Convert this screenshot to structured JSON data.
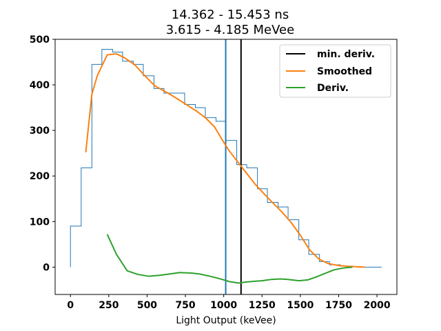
{
  "chart_data": {
    "type": "line",
    "title": "14.362 - 15.453 ns",
    "subtitle": "3.615 - 4.185 MeVee",
    "xlabel": "Light Output (keVee)",
    "ylabel": "",
    "xlim": [
      -100,
      2130
    ],
    "ylim": [
      -60,
      500
    ],
    "xticks": [
      0,
      250,
      500,
      750,
      1000,
      1250,
      1500,
      1750,
      2000
    ],
    "yticks": [
      0,
      100,
      200,
      300,
      400,
      500
    ],
    "grid": false,
    "legend_position": "top-right",
    "histogram": {
      "name": "",
      "color": "#1f77b4",
      "edges": [
        0,
        70,
        140,
        205,
        275,
        340,
        410,
        475,
        545,
        610,
        680,
        745,
        815,
        880,
        950,
        1015,
        1085,
        1150,
        1220,
        1285,
        1355,
        1420,
        1490,
        1555,
        1625,
        1690,
        1760,
        1825,
        1895,
        1960,
        2030
      ],
      "counts": [
        90,
        218,
        445,
        478,
        472,
        452,
        445,
        420,
        392,
        382,
        382,
        357,
        350,
        328,
        320,
        278,
        225,
        218,
        172,
        142,
        132,
        104,
        60,
        28,
        12,
        5,
        2,
        1,
        0,
        0
      ]
    },
    "vertical_lines": [
      {
        "name": "",
        "x": 1013,
        "color": "#1f77b4"
      },
      {
        "name": "min. deriv.",
        "x": 1113,
        "color": "#000000"
      }
    ],
    "series": [
      {
        "name": "Smoothed",
        "color": "#ff7f0e",
        "x": [
          100,
          140,
          175,
          240,
          300,
          350,
          420,
          480,
          550,
          620,
          690,
          760,
          820,
          880,
          940,
          980,
          1030,
          1080,
          1140,
          1200,
          1260,
          1320,
          1380,
          1440,
          1500,
          1560,
          1620,
          1680,
          1740,
          1800,
          1860,
          1920
        ],
        "y": [
          252,
          380,
          420,
          466,
          468,
          460,
          444,
          422,
          398,
          385,
          371,
          356,
          343,
          328,
          308,
          285,
          258,
          236,
          210,
          184,
          162,
          141,
          121,
          98,
          70,
          38,
          18,
          8,
          4,
          2,
          1,
          0
        ]
      },
      {
        "name": "Deriv.",
        "color": "#2ca02c",
        "x": [
          240,
          300,
          370,
          440,
          510,
          580,
          650,
          710,
          790,
          840,
          910,
          980,
          1040,
          1100,
          1140,
          1200,
          1250,
          1310,
          1370,
          1420,
          1490,
          1550,
          1600,
          1660,
          1720,
          1780,
          1840
        ],
        "y": [
          72,
          28,
          -8,
          -16,
          -20,
          -18,
          -15,
          -12,
          -13,
          -15,
          -20,
          -26,
          -32,
          -35,
          -33,
          -31,
          -30,
          -27,
          -26,
          -27,
          -30,
          -28,
          -22,
          -14,
          -6,
          -2,
          0
        ]
      }
    ],
    "legend": [
      "min. deriv.",
      "Smoothed",
      "Deriv."
    ]
  }
}
